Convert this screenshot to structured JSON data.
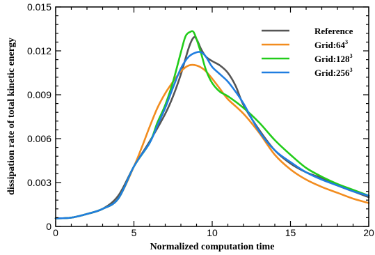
{
  "chart_data": {
    "type": "line",
    "title": "",
    "xlabel": "Normalized computation time",
    "ylabel": "dissipation rate of total kinetic energy",
    "xlim": [
      0,
      20
    ],
    "ylim": [
      0,
      0.015
    ],
    "xticks": [
      0,
      5,
      10,
      15,
      20
    ],
    "xtick_labels": [
      "0",
      "5",
      "10",
      "15",
      "20"
    ],
    "yticks": [
      0,
      0.003,
      0.006,
      0.009,
      0.012,
      0.015
    ],
    "ytick_labels": [
      "0",
      "0.003",
      "0.006",
      "0.009",
      "0.012",
      "0.015"
    ],
    "grid": false,
    "legend_position": "top-right",
    "series": [
      {
        "name": "Reference",
        "legend_text": "Reference",
        "legend_sup": "",
        "color": "#555555",
        "x": [
          0,
          1,
          2,
          3,
          4,
          5,
          6,
          7,
          7.5,
          8,
          8.5,
          8.8,
          9,
          9.3,
          9.6,
          10,
          10.5,
          11,
          11.5,
          12,
          13,
          14,
          15,
          16,
          17,
          18,
          19,
          20
        ],
        "y": [
          0.00055,
          0.0006,
          0.00085,
          0.0012,
          0.0021,
          0.0041,
          0.0058,
          0.0077,
          0.0089,
          0.0104,
          0.0122,
          0.0129,
          0.0128,
          0.0121,
          0.0116,
          0.0113,
          0.011,
          0.0105,
          0.0096,
          0.0083,
          0.0066,
          0.0052,
          0.0043,
          0.0037,
          0.0033,
          0.0028,
          0.0024,
          0.002
        ]
      },
      {
        "name": "Grid:64^3",
        "legend_text": "Grid:64",
        "legend_sup": "3",
        "color": "#f28c1e",
        "x": [
          0,
          1,
          2,
          3,
          4,
          5,
          5.5,
          6,
          6.5,
          7,
          7.5,
          8,
          8.5,
          9,
          9.5,
          10,
          10.5,
          11,
          12,
          13,
          14,
          15,
          16,
          17,
          18,
          19,
          20
        ],
        "y": [
          0.00055,
          0.0006,
          0.00085,
          0.0012,
          0.0019,
          0.0041,
          0.0054,
          0.0068,
          0.0081,
          0.0091,
          0.0099,
          0.0106,
          0.011,
          0.011,
          0.0107,
          0.0101,
          0.0094,
          0.0087,
          0.0077,
          0.0064,
          0.0049,
          0.0039,
          0.0032,
          0.0027,
          0.0023,
          0.0019,
          0.0016
        ]
      },
      {
        "name": "Grid:128^3",
        "legend_text": "Grid:128",
        "legend_sup": "3",
        "color": "#22cc1a",
        "x": [
          0,
          1,
          2,
          3,
          4,
          5,
          6,
          6.5,
          7,
          7.5,
          8,
          8.3,
          8.6,
          8.8,
          9,
          9.3,
          9.6,
          10,
          10.5,
          11,
          12,
          13,
          14,
          15,
          16,
          17,
          18,
          19,
          20
        ],
        "y": [
          0.00055,
          0.0006,
          0.00085,
          0.0012,
          0.0019,
          0.0041,
          0.0057,
          0.0071,
          0.0083,
          0.0099,
          0.0119,
          0.013,
          0.0133,
          0.0133,
          0.0128,
          0.0118,
          0.0107,
          0.0098,
          0.0092,
          0.0089,
          0.0081,
          0.0071,
          0.0059,
          0.0049,
          0.004,
          0.0034,
          0.0029,
          0.0025,
          0.0021
        ]
      },
      {
        "name": "Grid:256^3",
        "legend_text": "Grid:256",
        "legend_sup": "3",
        "color": "#1f7de0",
        "x": [
          0,
          1,
          2,
          3,
          4,
          5,
          6,
          6.5,
          7,
          7.5,
          8,
          8.5,
          9,
          9.3,
          9.6,
          10,
          10.5,
          11,
          11.5,
          12,
          13,
          14,
          15,
          16,
          17,
          18,
          19,
          20
        ],
        "y": [
          0.00055,
          0.0006,
          0.00085,
          0.0012,
          0.0019,
          0.0041,
          0.0057,
          0.0069,
          0.0081,
          0.0095,
          0.0108,
          0.0116,
          0.0119,
          0.0119,
          0.0116,
          0.0109,
          0.0104,
          0.0099,
          0.0092,
          0.0084,
          0.0065,
          0.0052,
          0.0044,
          0.0037,
          0.0032,
          0.0028,
          0.0024,
          0.0021
        ]
      }
    ]
  }
}
